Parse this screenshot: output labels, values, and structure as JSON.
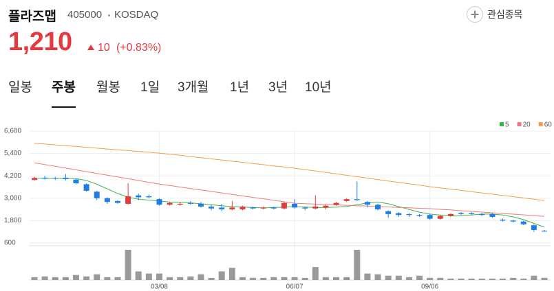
{
  "header": {
    "name": "플라즈맵",
    "code": "405000",
    "market": "KOSDAQ",
    "favorite": "관심종목",
    "price": "1,210",
    "change": "10",
    "change_pct": "(+0.83%)"
  },
  "tabs": {
    "items": [
      "일봉",
      "주봉",
      "월봉",
      "1일",
      "3개월",
      "1년",
      "3년",
      "10년"
    ],
    "selected": 1
  },
  "chart_data": {
    "type": "candlestick",
    "categories": [
      null,
      null,
      null,
      null,
      null,
      null,
      null,
      null,
      null,
      null,
      null,
      null,
      "03/08",
      null,
      null,
      null,
      null,
      null,
      null,
      null,
      null,
      null,
      null,
      null,
      null,
      "06/07",
      null,
      null,
      null,
      null,
      null,
      null,
      null,
      null,
      null,
      null,
      null,
      null,
      "09/06",
      null,
      null,
      null,
      null,
      null,
      null,
      null,
      null,
      null,
      null,
      null
    ],
    "ohlc": [
      [
        3980,
        4150,
        3950,
        4080
      ],
      [
        4100,
        4200,
        4000,
        4050
      ],
      [
        4080,
        4150,
        3980,
        4060
      ],
      [
        4100,
        4300,
        3950,
        4030
      ],
      [
        4000,
        4050,
        3750,
        3800
      ],
      [
        3750,
        3800,
        3350,
        3400
      ],
      [
        3350,
        3400,
        2900,
        3000
      ],
      [
        3000,
        3050,
        2700,
        2800
      ],
      [
        2850,
        2900,
        2700,
        2750
      ],
      [
        2700,
        3800,
        2650,
        3100
      ],
      [
        3150,
        3250,
        2900,
        3050
      ],
      [
        3100,
        3200,
        3000,
        3050
      ],
      [
        2950,
        3000,
        2600,
        2650
      ],
      [
        2650,
        2800,
        2600,
        2750
      ],
      [
        2650,
        2800,
        2600,
        2700
      ],
      [
        2750,
        2850,
        2650,
        2700
      ],
      [
        2700,
        2800,
        2500,
        2550
      ],
      [
        2550,
        2650,
        2350,
        2450
      ],
      [
        2500,
        2700,
        2300,
        2400
      ],
      [
        2400,
        2850,
        2350,
        2500
      ],
      [
        2400,
        2600,
        2350,
        2550
      ],
      [
        2500,
        2550,
        2400,
        2450
      ],
      [
        2450,
        2550,
        2400,
        2500
      ],
      [
        2500,
        2550,
        2400,
        2450
      ],
      [
        2450,
        2800,
        2400,
        2750
      ],
      [
        2700,
        2950,
        2450,
        2500
      ],
      [
        2500,
        2550,
        2350,
        2450
      ],
      [
        2450,
        3150,
        2400,
        2550
      ],
      [
        2500,
        2650,
        2400,
        2600
      ],
      [
        2650,
        2800,
        2600,
        2750
      ],
      [
        2850,
        3000,
        2800,
        2950
      ],
      [
        2950,
        3900,
        2850,
        2900
      ],
      [
        2800,
        2850,
        2500,
        2650
      ],
      [
        2650,
        2700,
        2350,
        2400
      ],
      [
        2300,
        2350,
        1950,
        2150
      ],
      [
        2200,
        2250,
        2000,
        2100
      ],
      [
        2150,
        2200,
        2000,
        2100
      ],
      [
        2100,
        2150,
        2000,
        2050
      ],
      [
        2100,
        2150,
        1850,
        1900
      ],
      [
        1900,
        2100,
        1850,
        2050
      ],
      [
        2050,
        2200,
        2000,
        2150
      ],
      [
        2200,
        2250,
        2100,
        2150
      ],
      [
        2200,
        2250,
        2100,
        2150
      ],
      [
        2150,
        2200,
        2050,
        2100
      ],
      [
        2150,
        2200,
        1950,
        2000
      ],
      [
        1850,
        1900,
        1750,
        1800
      ],
      [
        1800,
        1850,
        1700,
        1750
      ],
      [
        1750,
        1800,
        1550,
        1600
      ],
      [
        1550,
        1600,
        1200,
        1300
      ],
      [
        1250,
        1300,
        1200,
        1210
      ]
    ],
    "up_color": "#e23b3b",
    "down_color": "#1e7ee6",
    "series": [
      {
        "name": "5",
        "color": "#3cb44b",
        "values": [
          4080,
          4070,
          4060,
          4070,
          4050,
          3950,
          3750,
          3500,
          3250,
          3050,
          2950,
          2900,
          2850,
          2800,
          2780,
          2750,
          2700,
          2650,
          2600,
          2550,
          2520,
          2500,
          2480,
          2500,
          2520,
          2540,
          2530,
          2500,
          2500,
          2520,
          2560,
          2650,
          2750,
          2800,
          2700,
          2550,
          2400,
          2250,
          2150,
          2100,
          2050,
          2050,
          2100,
          2150,
          2150,
          2100,
          2000,
          1850,
          1650,
          1450
        ]
      },
      {
        "name": "20",
        "color": "#f07a7a",
        "values": [
          4900,
          4805,
          4710,
          4615,
          4520,
          4425,
          4330,
          4235,
          4140,
          4045,
          3950,
          3855,
          3760,
          3680,
          3600,
          3520,
          3445,
          3365,
          3285,
          3205,
          3125,
          3045,
          2970,
          2890,
          2810,
          2730,
          2710,
          2685,
          2665,
          2640,
          2620,
          2595,
          2575,
          2550,
          2530,
          2505,
          2485,
          2460,
          2440,
          2405,
          2370,
          2330,
          2295,
          2255,
          2220,
          2180,
          2145,
          2110,
          2070,
          2030
        ]
      },
      {
        "name": "60",
        "color": "#f0a050",
        "values": [
          5950,
          5905,
          5860,
          5815,
          5775,
          5730,
          5685,
          5640,
          5600,
          5555,
          5510,
          5465,
          5420,
          5360,
          5300,
          5235,
          5175,
          5110,
          5050,
          4985,
          4925,
          4860,
          4800,
          4735,
          4675,
          4610,
          4535,
          4460,
          4380,
          4305,
          4230,
          4155,
          4080,
          4000,
          3925,
          3850,
          3775,
          3700,
          3620,
          3555,
          3485,
          3420,
          3350,
          3285,
          3220,
          3150,
          3085,
          3015,
          2950,
          2880
        ]
      }
    ],
    "volume": {
      "color": "#9a9a9a",
      "values": [
        4,
        5,
        4,
        4,
        7,
        5,
        8,
        4,
        4,
        42,
        12,
        9,
        9,
        4,
        4,
        5,
        8,
        3,
        12,
        17,
        4,
        3,
        3,
        4,
        4,
        4,
        3,
        18,
        4,
        4,
        4,
        42,
        9,
        8,
        6,
        6,
        4,
        6,
        3,
        3,
        2,
        2,
        2,
        2,
        2,
        2,
        3,
        2,
        6,
        3
      ]
    },
    "ylim": [
      600,
      6600
    ],
    "yticks": [
      {
        "value": 600,
        "label": "600"
      },
      {
        "value": 1800,
        "label": "1,800"
      },
      {
        "value": 3000,
        "label": "3,000"
      },
      {
        "value": 4200,
        "label": "4,200"
      },
      {
        "value": 5400,
        "label": "5,400"
      },
      {
        "value": 6600,
        "label": "6,600"
      }
    ],
    "grid": true,
    "legend": "top-right"
  }
}
